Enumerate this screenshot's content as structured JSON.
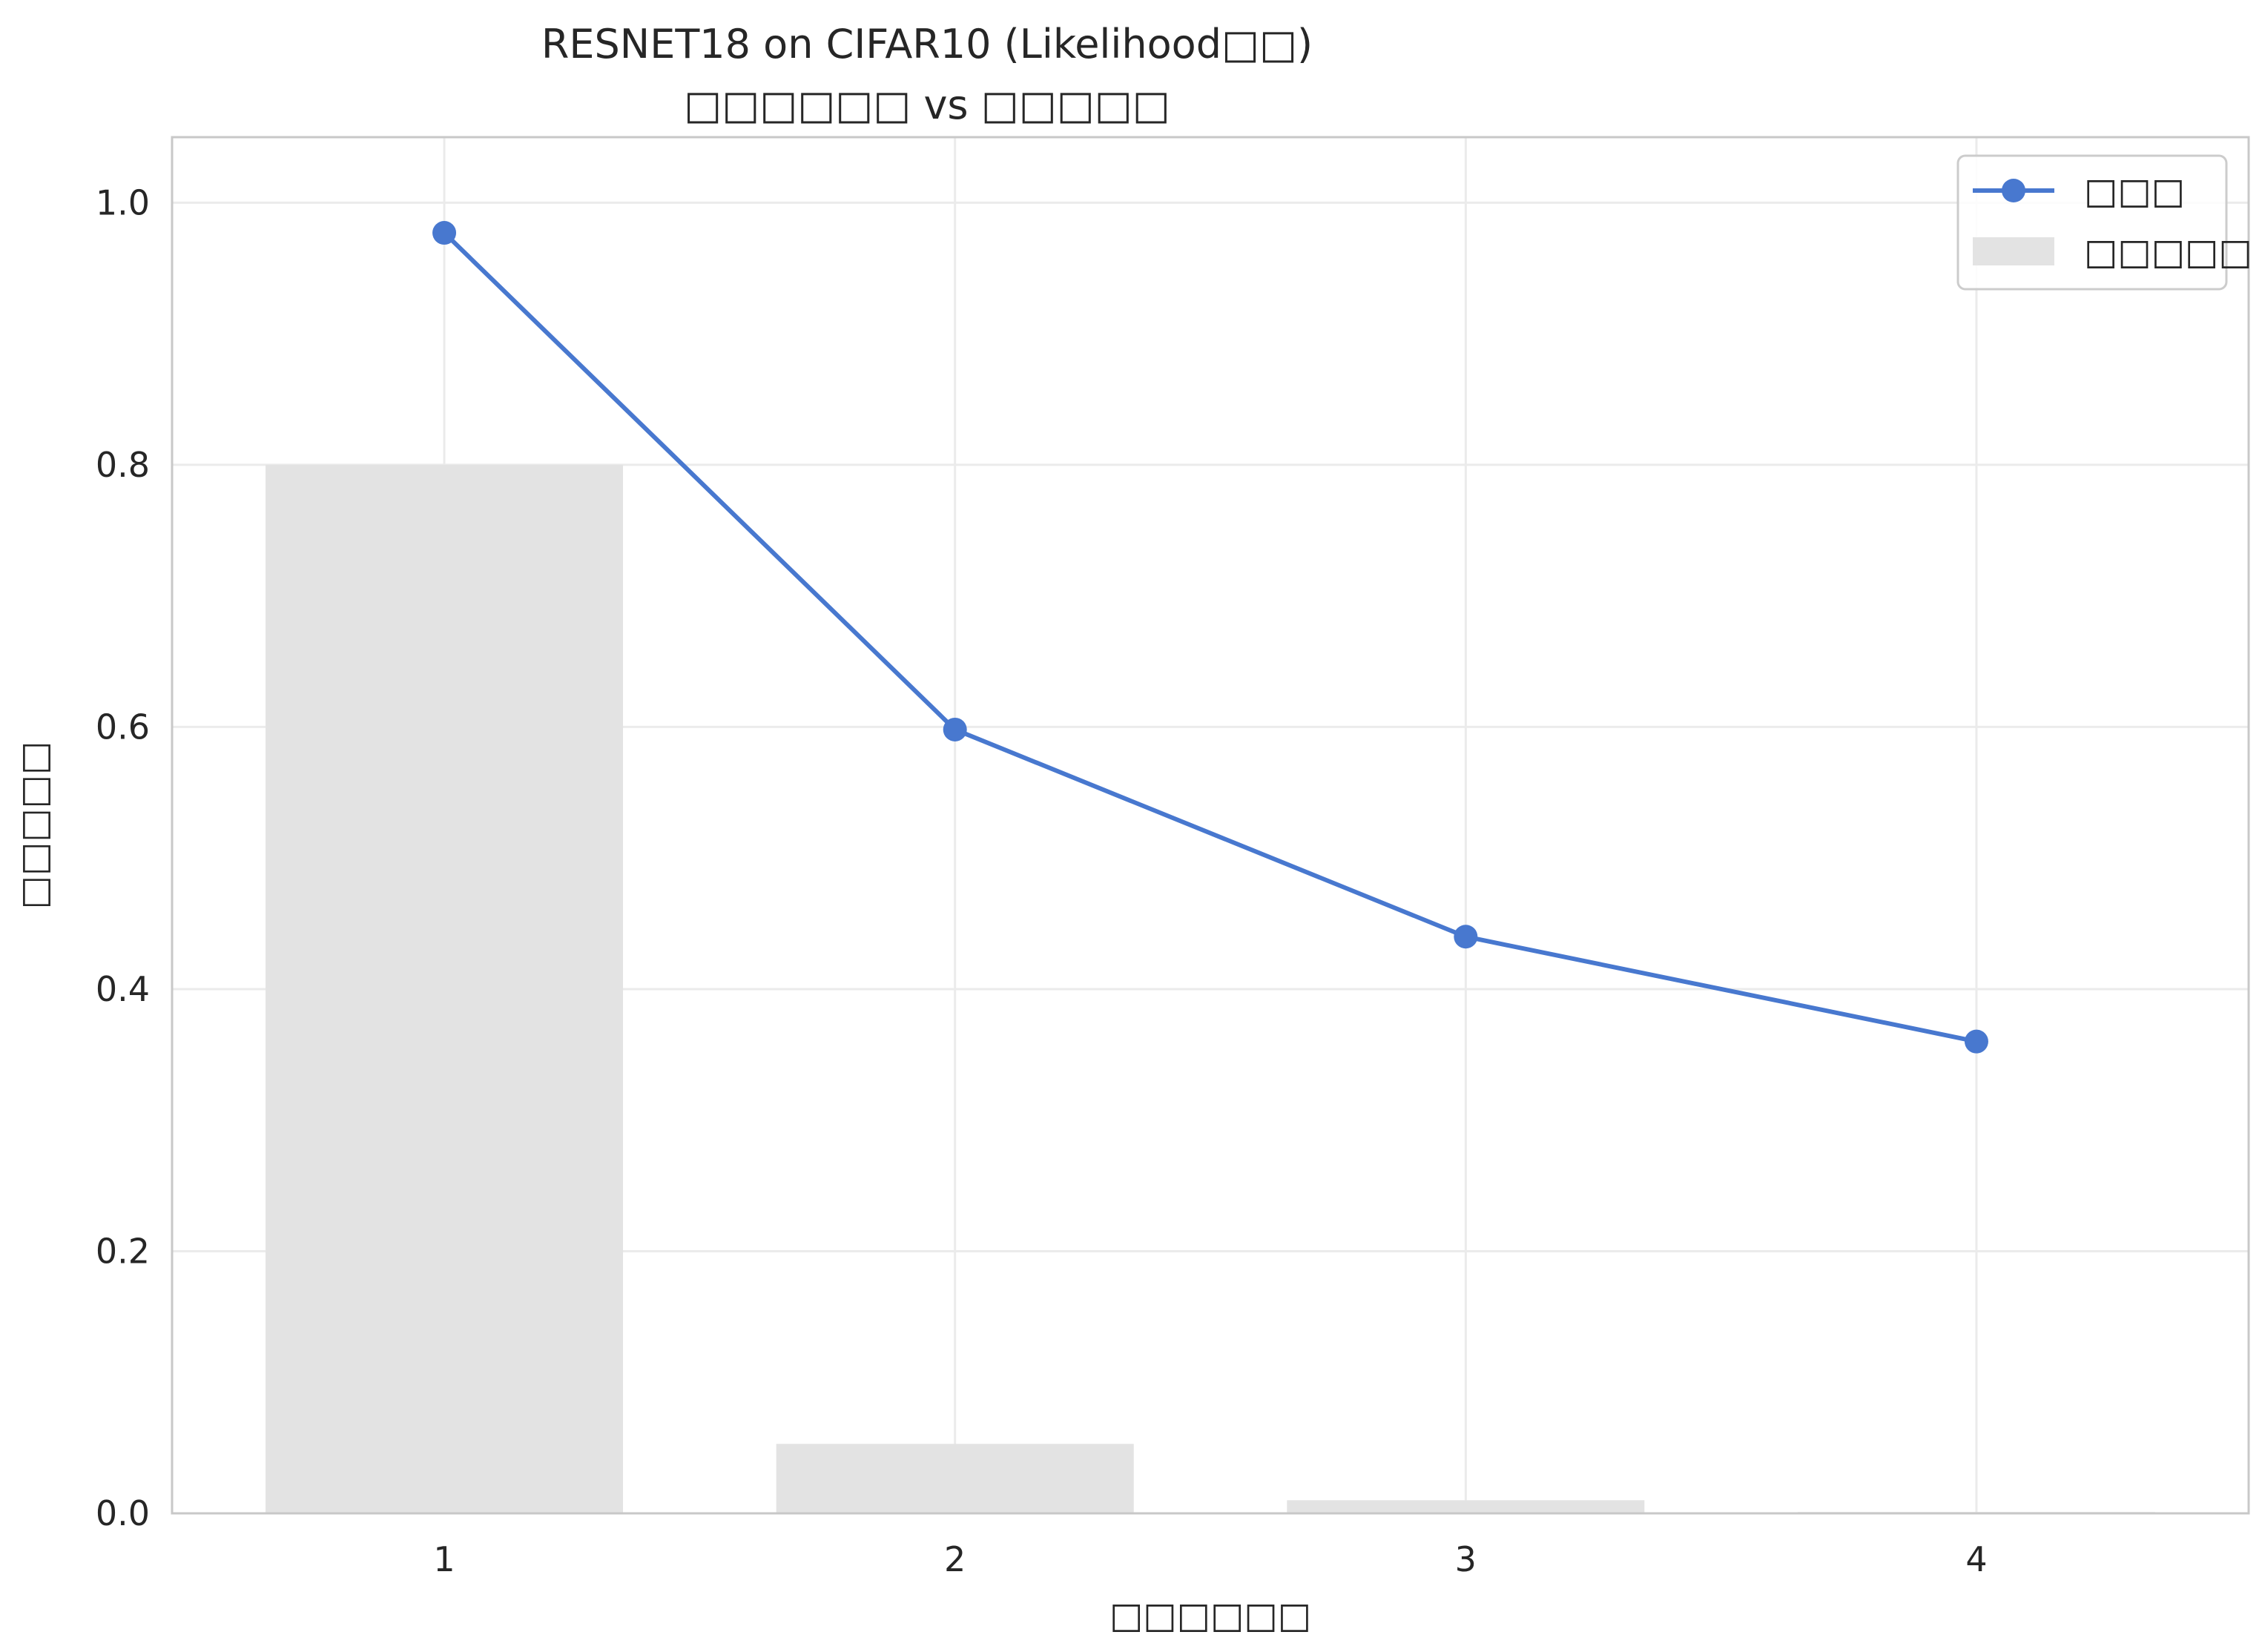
{
  "chart_data": {
    "type": "bar+line",
    "title_line1": "RESNET18 on CIFAR10 (Likelihood□□)",
    "title_line2": "□□□□□□ vs □□□□□",
    "xlabel": "□□□□□□",
    "ylabel": "□□□□□",
    "categories": [
      1,
      2,
      3,
      4
    ],
    "xlim": [
      0.467,
      4.533
    ],
    "ylim": [
      0.0,
      1.05
    ],
    "yticks": [
      0.0,
      0.2,
      0.4,
      0.6,
      0.8,
      1.0
    ],
    "ytick_labels": [
      "0.0",
      "0.2",
      "0.4",
      "0.6",
      "0.8",
      "1.0"
    ],
    "xtick_labels": [
      "1",
      "2",
      "3",
      "4"
    ],
    "grid": true,
    "legend_position": "top-right",
    "series": [
      {
        "name": "□□□",
        "kind": "line",
        "marker": "circle",
        "color": "#4878CF",
        "values": [
          0.977,
          0.598,
          0.44,
          0.36
        ]
      },
      {
        "name": "□□□□□",
        "kind": "bar",
        "color": "#E3E3E3",
        "values": [
          0.8,
          0.053,
          0.01,
          0.001
        ]
      }
    ]
  }
}
